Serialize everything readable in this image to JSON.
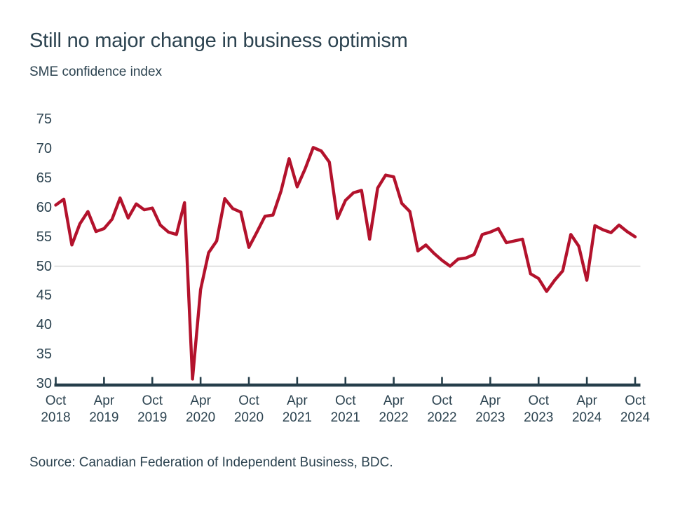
{
  "header": {
    "title": "Still no major change in business optimism",
    "subtitle": "SME confidence index"
  },
  "footer": {
    "source": "Source: Canadian Federation of Independent Business, BDC."
  },
  "colors": {
    "line": "#b3122c",
    "text": "#2c4350",
    "axis": "#253e4a",
    "gridline": "#d8d8d8"
  },
  "chart_data": {
    "type": "line",
    "title": "Still no major change in business optimism",
    "subtitle": "SME confidence index",
    "xlabel": "",
    "ylabel": "SME confidence index",
    "ylim": [
      30,
      75
    ],
    "grid": "horizontal gridline at 50 only",
    "legend": "none",
    "x": {
      "start": "Oct 2018",
      "end": "Oct 2024",
      "frequency": "monthly"
    },
    "y_ticks": [
      75,
      70,
      65,
      60,
      55,
      50,
      45,
      40,
      35,
      30
    ],
    "x_ticks": [
      {
        "month": "Oct",
        "year": "2018"
      },
      {
        "month": "Apr",
        "year": "2019"
      },
      {
        "month": "Oct",
        "year": "2019"
      },
      {
        "month": "Apr",
        "year": "2020"
      },
      {
        "month": "Oct",
        "year": "2020"
      },
      {
        "month": "Apr",
        "year": "2021"
      },
      {
        "month": "Oct",
        "year": "2021"
      },
      {
        "month": "Apr",
        "year": "2022"
      },
      {
        "month": "Oct",
        "year": "2022"
      },
      {
        "month": "Apr",
        "year": "2023"
      },
      {
        "month": "Oct",
        "year": "2023"
      },
      {
        "month": "Apr",
        "year": "2024"
      },
      {
        "month": "Oct",
        "year": "2024"
      }
    ],
    "gridline_value": 50,
    "series": [
      {
        "name": "SME confidence index",
        "color": "#b3122c",
        "values": [
          60.4,
          61.4,
          53.6,
          57.2,
          59.3,
          55.9,
          56.4,
          58.0,
          61.6,
          58.2,
          60.6,
          59.6,
          59.9,
          57.0,
          55.8,
          55.4,
          60.8,
          30.8,
          46.0,
          52.3,
          54.3,
          61.5,
          59.8,
          59.2,
          53.2,
          55.8,
          58.5,
          58.7,
          62.8,
          68.3,
          63.5,
          66.6,
          70.2,
          69.6,
          67.7,
          58.1,
          61.2,
          62.5,
          62.9,
          54.6,
          63.3,
          65.5,
          65.2,
          60.7,
          59.3,
          52.6,
          53.6,
          52.2,
          51.0,
          50.0,
          51.2,
          51.4,
          52.0,
          55.4,
          55.8,
          56.4,
          54.0,
          54.3,
          54.6,
          48.7,
          47.9,
          45.7,
          47.6,
          49.2,
          55.4,
          53.4,
          47.6,
          56.9,
          56.2,
          55.7,
          57.0,
          55.9,
          55.0
        ]
      }
    ]
  }
}
